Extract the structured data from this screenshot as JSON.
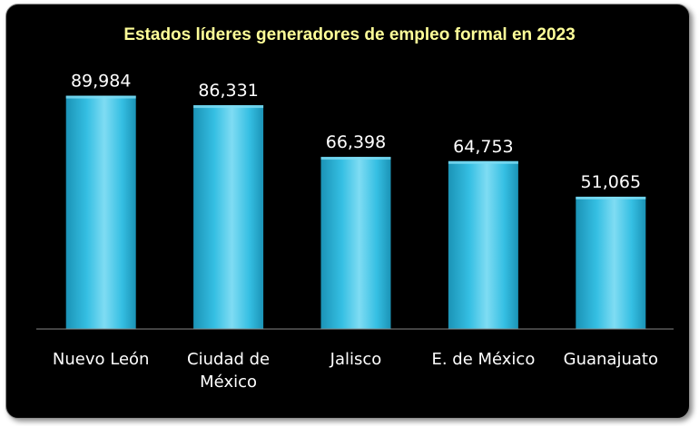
{
  "chart_data": {
    "type": "bar",
    "title": "Estados líderes generadores de empleo formal en 2023",
    "categories": [
      "Nuevo León",
      "Ciudad de México",
      "Jalisco",
      "E. de México",
      "Guanajuato"
    ],
    "category_lines": [
      [
        "Nuevo León"
      ],
      [
        "Ciudad de",
        "México"
      ],
      [
        "Jalisco"
      ],
      [
        "E. de México"
      ],
      [
        "Guanajuato"
      ]
    ],
    "values": [
      89984,
      86331,
      66398,
      64753,
      51065
    ],
    "value_labels": [
      "89,984",
      "86,331",
      "66,398",
      "64,753",
      "51,065"
    ],
    "xlabel": "",
    "ylabel": "",
    "ylim": [
      0,
      100000
    ],
    "grid": false,
    "legend": "none",
    "colors": {
      "background": "#000000",
      "bar": "#35bfe3",
      "bar_light": "#7fdcf3",
      "bar_dark": "#1b93b6",
      "title": "#ffff99",
      "text": "#ffffff",
      "axis": "#888888"
    }
  }
}
